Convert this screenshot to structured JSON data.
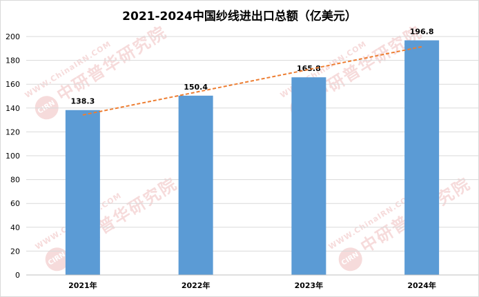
{
  "chart_data": {
    "type": "bar",
    "title": "2021-2024中国纱线进出口总额（亿美元）",
    "categories": [
      "2021年",
      "2022年",
      "2023年",
      "2024年"
    ],
    "values": [
      138.3,
      150.4,
      165.8,
      196.8
    ],
    "value_labels": [
      "138.3",
      "150.4",
      "165.8",
      "196.8"
    ],
    "ylim": [
      0,
      200
    ],
    "yticks": [
      0,
      20,
      40,
      60,
      80,
      100,
      120,
      140,
      160,
      180,
      200
    ],
    "grid": true,
    "trendline": {
      "type": "linear",
      "style": "dashed",
      "color": "#ED7D31"
    },
    "bar_color": "#5B9BD5"
  },
  "watermark": {
    "url_text": "WWW.ChinaIRN.COM",
    "org_text": "中研普华研究院",
    "logo_text": "CIRN"
  }
}
